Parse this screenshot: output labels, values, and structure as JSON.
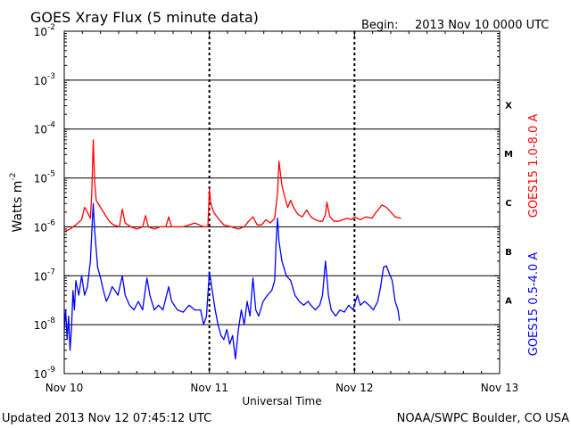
{
  "header": {
    "title": "GOES Xray Flux (5 minute data)",
    "begin_label": "Begin:",
    "begin_value": "2013 Nov 10 0000 UTC"
  },
  "footer": {
    "updated": "Updated 2013 Nov 12 07:45:12 UTC",
    "source": "NOAA/SWPC Boulder, CO USA"
  },
  "chart_data": {
    "type": "line",
    "title": "GOES Xray Flux (5 minute data)",
    "xlabel": "Universal Time",
    "ylabel": "Watts m",
    "ylabel_sup": "-2",
    "y_scale": "log",
    "ylim": [
      1e-09,
      0.01
    ],
    "y_ticks": [
      {
        "base": "10",
        "exp": "-2",
        "value": 0.01
      },
      {
        "base": "10",
        "exp": "-3",
        "value": 0.001
      },
      {
        "base": "10",
        "exp": "-4",
        "value": 0.0001
      },
      {
        "base": "10",
        "exp": "-5",
        "value": 1e-05
      },
      {
        "base": "10",
        "exp": "-6",
        "value": 1e-06
      },
      {
        "base": "10",
        "exp": "-7",
        "value": 1e-07
      },
      {
        "base": "10",
        "exp": "-8",
        "value": 1e-08
      },
      {
        "base": "10",
        "exp": "-9",
        "value": 1e-09
      }
    ],
    "xlim": [
      "2013 Nov 10 00:00",
      "2013 Nov 13 00:00"
    ],
    "x_ticks": [
      {
        "label": "Nov 10",
        "day": 0
      },
      {
        "label": "Nov 11",
        "day": 1
      },
      {
        "label": "Nov 12",
        "day": 2
      },
      {
        "label": "Nov 13",
        "day": 3
      }
    ],
    "flare_classes": [
      {
        "label": "X",
        "value": 0.0001
      },
      {
        "label": "M",
        "value": 1e-05
      },
      {
        "label": "C",
        "value": 1e-06
      },
      {
        "label": "B",
        "value": 1e-07
      },
      {
        "label": "A",
        "value": 1e-08
      }
    ],
    "grid": {
      "horizontal": true,
      "day_lines": "dashed"
    },
    "series": [
      {
        "name": "GOES15 1.0-8.0 A",
        "color": "#ff0000",
        "points": [
          [
            0.0,
            8e-07
          ],
          [
            0.04,
            9e-07
          ],
          [
            0.08,
            1.1e-06
          ],
          [
            0.12,
            1.4e-06
          ],
          [
            0.14,
            2.5e-06
          ],
          [
            0.16,
            2e-06
          ],
          [
            0.18,
            1.5e-06
          ],
          [
            0.19,
            5e-06
          ],
          [
            0.2,
            6e-05
          ],
          [
            0.21,
            8e-06
          ],
          [
            0.22,
            3.5e-06
          ],
          [
            0.25,
            2.5e-06
          ],
          [
            0.28,
            1.8e-06
          ],
          [
            0.31,
            1.3e-06
          ],
          [
            0.34,
            1.1e-06
          ],
          [
            0.38,
            1e-06
          ],
          [
            0.4,
            2.3e-06
          ],
          [
            0.42,
            1.2e-06
          ],
          [
            0.46,
            1e-06
          ],
          [
            0.5,
            9e-07
          ],
          [
            0.54,
            1e-06
          ],
          [
            0.56,
            1.7e-06
          ],
          [
            0.58,
            1e-06
          ],
          [
            0.62,
            9e-07
          ],
          [
            0.66,
            1e-06
          ],
          [
            0.7,
            1e-06
          ],
          [
            0.72,
            1.6e-06
          ],
          [
            0.74,
            1e-06
          ],
          [
            0.78,
            1e-06
          ],
          [
            0.82,
            1e-06
          ],
          [
            0.86,
            1.1e-06
          ],
          [
            0.9,
            1.2e-06
          ],
          [
            0.93,
            1.1e-06
          ],
          [
            0.96,
            1e-06
          ],
          [
            0.99,
            1e-06
          ],
          [
            1.0,
            6e-06
          ],
          [
            1.01,
            3e-06
          ],
          [
            1.03,
            2e-06
          ],
          [
            1.06,
            1.5e-06
          ],
          [
            1.1,
            1.1e-06
          ],
          [
            1.15,
            1e-06
          ],
          [
            1.2,
            9e-07
          ],
          [
            1.24,
            1e-06
          ],
          [
            1.27,
            1.3e-06
          ],
          [
            1.3,
            1.6e-06
          ],
          [
            1.33,
            1.1e-06
          ],
          [
            1.36,
            1.1e-06
          ],
          [
            1.39,
            1.4e-06
          ],
          [
            1.42,
            1.2e-06
          ],
          [
            1.45,
            1.5e-06
          ],
          [
            1.47,
            5e-06
          ],
          [
            1.48,
            2.2e-05
          ],
          [
            1.5,
            7e-06
          ],
          [
            1.52,
            4e-06
          ],
          [
            1.54,
            2.5e-06
          ],
          [
            1.56,
            3.5e-06
          ],
          [
            1.58,
            2.5e-06
          ],
          [
            1.61,
            1.8e-06
          ],
          [
            1.64,
            1.6e-06
          ],
          [
            1.67,
            2.2e-06
          ],
          [
            1.7,
            1.6e-06
          ],
          [
            1.73,
            1.4e-06
          ],
          [
            1.76,
            1.3e-06
          ],
          [
            1.78,
            1.3e-06
          ],
          [
            1.8,
            1.8e-06
          ],
          [
            1.81,
            3.2e-06
          ],
          [
            1.83,
            1.6e-06
          ],
          [
            1.86,
            1.3e-06
          ],
          [
            1.89,
            1.3e-06
          ],
          [
            1.92,
            1.4e-06
          ],
          [
            1.95,
            1.5e-06
          ],
          [
            1.98,
            1.4e-06
          ],
          [
            2.0,
            1.6e-06
          ],
          [
            2.04,
            1.4e-06
          ],
          [
            2.08,
            1.6e-06
          ],
          [
            2.12,
            1.5e-06
          ],
          [
            2.15,
            2e-06
          ],
          [
            2.19,
            2.8e-06
          ],
          [
            2.22,
            2.5e-06
          ],
          [
            2.25,
            2e-06
          ],
          [
            2.28,
            1.6e-06
          ],
          [
            2.32,
            1.5e-06
          ]
        ]
      },
      {
        "name": "GOES15 0.5-4.0 A",
        "color": "#0000ff",
        "points": [
          [
            0.0,
            8e-09
          ],
          [
            0.01,
            2e-08
          ],
          [
            0.02,
            5e-09
          ],
          [
            0.03,
            1.5e-08
          ],
          [
            0.04,
            3e-09
          ],
          [
            0.05,
            8e-09
          ],
          [
            0.06,
            5e-08
          ],
          [
            0.07,
            2e-08
          ],
          [
            0.08,
            8e-08
          ],
          [
            0.1,
            4e-08
          ],
          [
            0.12,
            1e-07
          ],
          [
            0.14,
            4e-08
          ],
          [
            0.16,
            6e-08
          ],
          [
            0.18,
            2e-07
          ],
          [
            0.2,
            3e-06
          ],
          [
            0.21,
            8e-07
          ],
          [
            0.23,
            1.5e-07
          ],
          [
            0.25,
            9e-08
          ],
          [
            0.27,
            5e-08
          ],
          [
            0.29,
            3e-08
          ],
          [
            0.31,
            4e-08
          ],
          [
            0.33,
            6e-08
          ],
          [
            0.35,
            5e-08
          ],
          [
            0.37,
            4e-08
          ],
          [
            0.4,
            1e-07
          ],
          [
            0.42,
            4e-08
          ],
          [
            0.45,
            2.5e-08
          ],
          [
            0.48,
            2e-08
          ],
          [
            0.51,
            3e-08
          ],
          [
            0.54,
            2e-08
          ],
          [
            0.57,
            9e-08
          ],
          [
            0.59,
            4e-08
          ],
          [
            0.62,
            2e-08
          ],
          [
            0.65,
            2.5e-08
          ],
          [
            0.68,
            2e-08
          ],
          [
            0.72,
            6e-08
          ],
          [
            0.74,
            3e-08
          ],
          [
            0.78,
            2e-08
          ],
          [
            0.82,
            1.8e-08
          ],
          [
            0.86,
            2.5e-08
          ],
          [
            0.9,
            2e-08
          ],
          [
            0.94,
            2e-08
          ],
          [
            0.96,
            1e-08
          ],
          [
            0.98,
            1.5e-08
          ],
          [
            1.0,
            1.2e-07
          ],
          [
            1.02,
            5e-08
          ],
          [
            1.04,
            2e-08
          ],
          [
            1.06,
            1e-08
          ],
          [
            1.08,
            6e-09
          ],
          [
            1.1,
            5e-09
          ],
          [
            1.12,
            8e-09
          ],
          [
            1.14,
            4e-09
          ],
          [
            1.16,
            6e-09
          ],
          [
            1.18,
            2e-09
          ],
          [
            1.2,
            8e-09
          ],
          [
            1.22,
            2e-08
          ],
          [
            1.24,
            1e-08
          ],
          [
            1.26,
            3e-08
          ],
          [
            1.28,
            1.5e-08
          ],
          [
            1.3,
            9e-08
          ],
          [
            1.32,
            2e-08
          ],
          [
            1.34,
            1.5e-08
          ],
          [
            1.37,
            3e-08
          ],
          [
            1.4,
            4e-08
          ],
          [
            1.43,
            5e-08
          ],
          [
            1.45,
            8e-08
          ],
          [
            1.46,
            5e-07
          ],
          [
            1.47,
            1.5e-06
          ],
          [
            1.48,
            5e-07
          ],
          [
            1.5,
            2e-07
          ],
          [
            1.53,
            1e-07
          ],
          [
            1.56,
            8e-08
          ],
          [
            1.59,
            4e-08
          ],
          [
            1.62,
            3e-08
          ],
          [
            1.65,
            2.5e-08
          ],
          [
            1.68,
            3e-08
          ],
          [
            1.7,
            2.5e-08
          ],
          [
            1.73,
            2e-08
          ],
          [
            1.76,
            2.5e-08
          ],
          [
            1.78,
            4e-08
          ],
          [
            1.8,
            2e-07
          ],
          [
            1.82,
            4e-08
          ],
          [
            1.84,
            2e-08
          ],
          [
            1.87,
            1.5e-08
          ],
          [
            1.9,
            2e-08
          ],
          [
            1.93,
            1.8e-08
          ],
          [
            1.96,
            2.5e-08
          ],
          [
            1.99,
            2e-08
          ],
          [
            2.02,
            4e-08
          ],
          [
            2.04,
            2.5e-08
          ],
          [
            2.07,
            3e-08
          ],
          [
            2.1,
            2.5e-08
          ],
          [
            2.13,
            2e-08
          ],
          [
            2.16,
            3e-08
          ],
          [
            2.18,
            6e-08
          ],
          [
            2.2,
            1.5e-07
          ],
          [
            2.22,
            1.6e-07
          ],
          [
            2.24,
            1.1e-07
          ],
          [
            2.26,
            8e-08
          ],
          [
            2.28,
            3e-08
          ],
          [
            2.3,
            2e-08
          ],
          [
            2.31,
            1.2e-08
          ]
        ]
      }
    ]
  }
}
